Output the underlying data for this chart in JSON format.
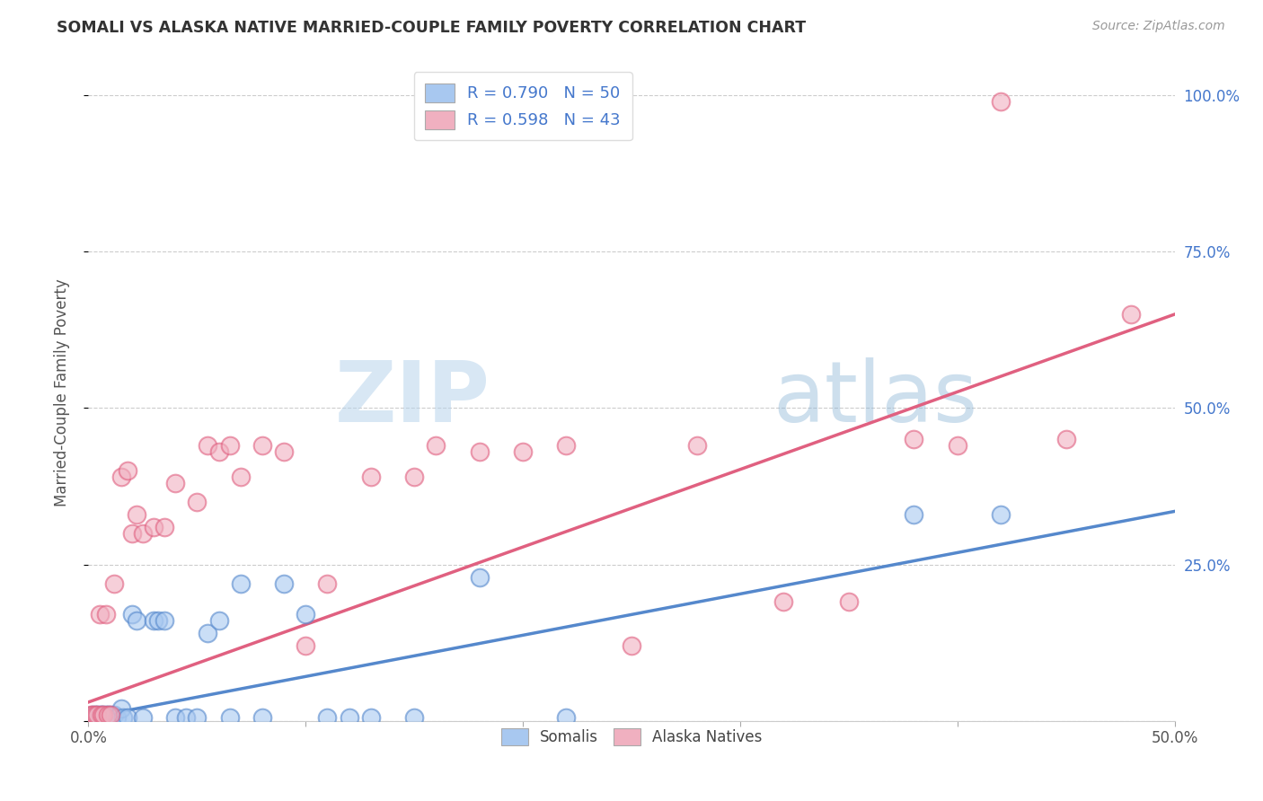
{
  "title": "SOMALI VS ALASKA NATIVE MARRIED-COUPLE FAMILY POVERTY CORRELATION CHART",
  "source": "Source: ZipAtlas.com",
  "ylabel": "Married-Couple Family Poverty",
  "watermark_zip": "ZIP",
  "watermark_atlas": "atlas",
  "xlim": [
    0.0,
    0.5
  ],
  "ylim": [
    0.0,
    1.05
  ],
  "somali_R": 0.79,
  "somali_N": 50,
  "alaska_R": 0.598,
  "alaska_N": 43,
  "somali_color": "#a8c8f0",
  "alaska_color": "#f0b0c0",
  "somali_line_color": "#5588cc",
  "alaska_line_color": "#e06080",
  "legend_label_somali": "Somalis",
  "legend_label_alaska": "Alaska Natives",
  "somali_line_x0": 0.0,
  "somali_line_y0": 0.005,
  "somali_line_x1": 0.5,
  "somali_line_y1": 0.335,
  "alaska_line_x0": 0.0,
  "alaska_line_y0": 0.03,
  "alaska_line_x1": 0.5,
  "alaska_line_y1": 0.65,
  "somali_x": [
    0.001,
    0.002,
    0.002,
    0.003,
    0.003,
    0.004,
    0.004,
    0.005,
    0.005,
    0.006,
    0.006,
    0.006,
    0.007,
    0.007,
    0.008,
    0.008,
    0.009,
    0.009,
    0.01,
    0.01,
    0.011,
    0.012,
    0.013,
    0.015,
    0.016,
    0.018,
    0.02,
    0.022,
    0.025,
    0.03,
    0.032,
    0.035,
    0.04,
    0.045,
    0.05,
    0.055,
    0.06,
    0.065,
    0.07,
    0.08,
    0.09,
    0.1,
    0.11,
    0.12,
    0.13,
    0.15,
    0.18,
    0.22,
    0.38,
    0.42
  ],
  "somali_y": [
    0.005,
    0.01,
    0.005,
    0.01,
    0.005,
    0.01,
    0.005,
    0.005,
    0.01,
    0.005,
    0.01,
    0.005,
    0.01,
    0.005,
    0.005,
    0.01,
    0.005,
    0.01,
    0.005,
    0.01,
    0.005,
    0.01,
    0.005,
    0.02,
    0.005,
    0.005,
    0.17,
    0.16,
    0.005,
    0.16,
    0.16,
    0.16,
    0.005,
    0.005,
    0.005,
    0.14,
    0.16,
    0.005,
    0.22,
    0.005,
    0.22,
    0.17,
    0.005,
    0.005,
    0.005,
    0.005,
    0.23,
    0.005,
    0.33,
    0.33
  ],
  "alaska_x": [
    0.001,
    0.002,
    0.003,
    0.004,
    0.005,
    0.006,
    0.007,
    0.008,
    0.009,
    0.01,
    0.012,
    0.015,
    0.018,
    0.02,
    0.022,
    0.025,
    0.03,
    0.035,
    0.04,
    0.05,
    0.055,
    0.06,
    0.065,
    0.07,
    0.08,
    0.09,
    0.1,
    0.11,
    0.13,
    0.15,
    0.16,
    0.18,
    0.2,
    0.22,
    0.25,
    0.28,
    0.32,
    0.35,
    0.38,
    0.4,
    0.42,
    0.45,
    0.48
  ],
  "alaska_y": [
    0.01,
    0.01,
    0.01,
    0.01,
    0.17,
    0.01,
    0.01,
    0.17,
    0.01,
    0.01,
    0.22,
    0.39,
    0.4,
    0.3,
    0.33,
    0.3,
    0.31,
    0.31,
    0.38,
    0.35,
    0.44,
    0.43,
    0.44,
    0.39,
    0.44,
    0.43,
    0.12,
    0.22,
    0.39,
    0.39,
    0.44,
    0.43,
    0.43,
    0.44,
    0.12,
    0.44,
    0.19,
    0.19,
    0.45,
    0.44,
    0.99,
    0.45,
    0.65
  ]
}
